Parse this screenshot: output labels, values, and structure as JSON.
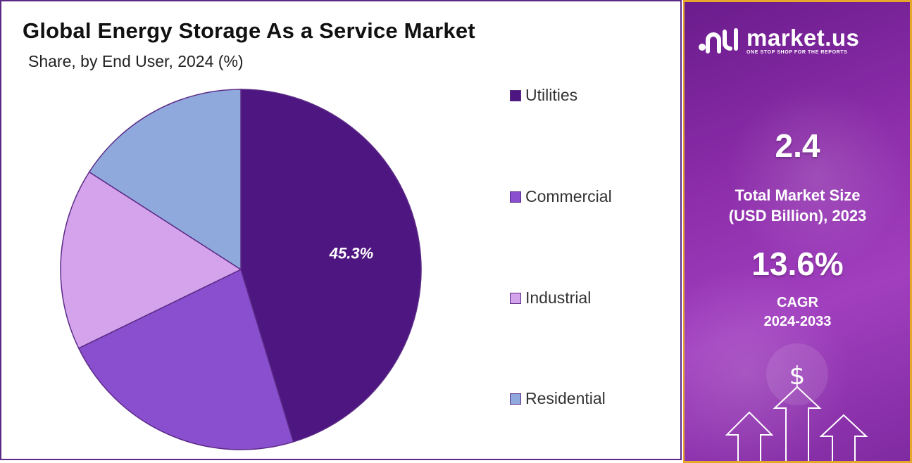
{
  "chart_data": {
    "type": "pie",
    "title": "Global Energy Storage As a Service Market",
    "subtitle": "Share, by End User, 2024 (%)",
    "categories": [
      "Utilities",
      "Commercial",
      "Industrial",
      "Residential"
    ],
    "values": [
      45.3,
      22.5,
      16.3,
      15.9
    ],
    "colors": [
      "#4e1680",
      "#8a4fcf",
      "#d4a3ec",
      "#8fa9dd"
    ],
    "data_labels": [
      "45.3%",
      "",
      "",
      ""
    ],
    "legend_position": "right"
  },
  "side_panel": {
    "brand": "market.us",
    "tagline": "ONE STOP SHOP FOR THE REPORTS",
    "market_size_value": "2.4",
    "market_size_label_1": "Total Market Size",
    "market_size_label_2": "(USD Billion), 2023",
    "cagr_value": "13.6%",
    "cagr_label_1": "CAGR",
    "cagr_label_2": "2024-2033",
    "currency_symbol": "$"
  }
}
